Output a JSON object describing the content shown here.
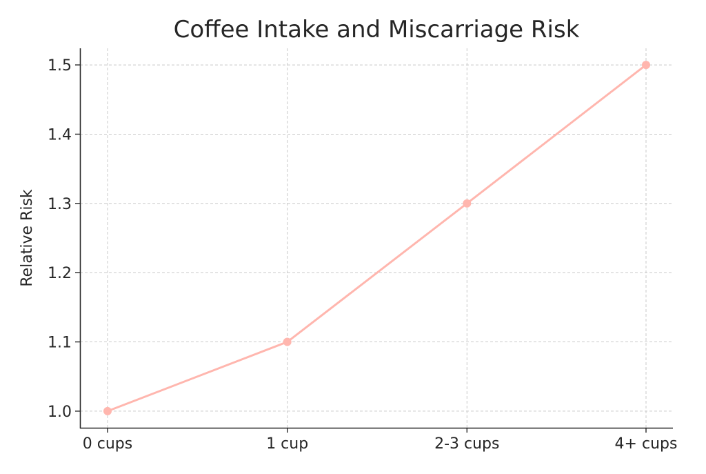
{
  "chart_data": {
    "type": "line",
    "title": "Coffee Intake and Miscarriage Risk",
    "xlabel": "",
    "ylabel": "Relative Risk",
    "categories": [
      "0 cups",
      "1 cup",
      "2-3 cups",
      "4+ cups"
    ],
    "series": [
      {
        "name": "Relative Risk",
        "values": [
          1.0,
          1.1,
          1.3,
          1.5
        ],
        "color": "#FFB6AE"
      }
    ],
    "ylim": [
      0.976,
      1.524
    ],
    "yticks": [
      1.0,
      1.1,
      1.2,
      1.3,
      1.4,
      1.5
    ],
    "ytick_labels": [
      "1.0",
      "1.1",
      "1.2",
      "1.3",
      "1.4",
      "1.5"
    ],
    "grid": true,
    "legend": "none"
  }
}
